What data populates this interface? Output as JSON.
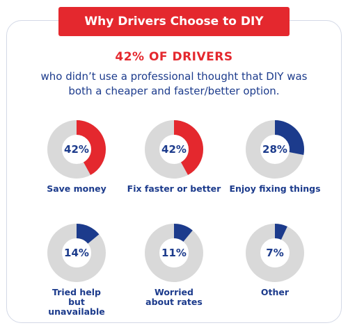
{
  "banner": {
    "title": "Why Drivers Choose to DIY"
  },
  "headline": "42% OF DRIVERS",
  "subhead": "who didn’t use a professional thought that DIY was both a cheaper and faster/better option.",
  "colors": {
    "red": "#e4282e",
    "blue": "#1c3b8c",
    "ring_bg": "#d9d9d9",
    "text_blue": "#1c3b8c"
  },
  "chart_data": {
    "type": "pie",
    "variant": "donut-grid",
    "items": [
      {
        "label": "Save money",
        "value": 42,
        "display": "42%",
        "color": "#e4282e"
      },
      {
        "label": "Fix faster or better",
        "value": 42,
        "display": "42%",
        "color": "#e4282e"
      },
      {
        "label": "Enjoy fixing things",
        "value": 28,
        "display": "28%",
        "color": "#1c3b8c"
      },
      {
        "label": "Tried help but unavailable",
        "value": 14,
        "display": "14%",
        "color": "#1c3b8c"
      },
      {
        "label": "Worried about rates",
        "value": 11,
        "display": "11%",
        "color": "#1c3b8c"
      },
      {
        "label": "Other",
        "value": 7,
        "display": "7%",
        "color": "#1c3b8c"
      }
    ]
  }
}
